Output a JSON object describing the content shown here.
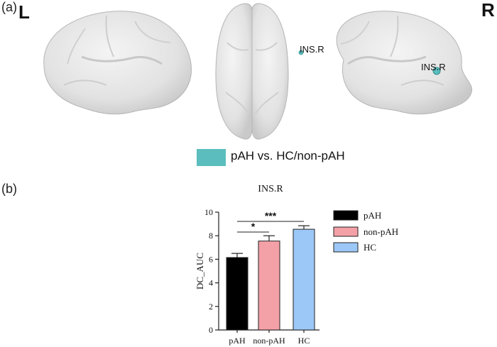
{
  "panel_a": {
    "label": "(a)",
    "left_hemisphere_label": "L",
    "right_hemisphere_label": "R",
    "roi_label_top": "INS.R",
    "roi_label_right": "INS.R",
    "roi_color": "#5bbdbd",
    "legend_text": "pAH vs. HC/non-pAH"
  },
  "panel_b": {
    "label": "(b)"
  },
  "chart_data": {
    "type": "bar",
    "title": "INS.R",
    "xlabel": "",
    "ylabel": "DC_AUC",
    "categories": [
      "pAH",
      "non-pAH",
      "HC"
    ],
    "values": [
      6.15,
      7.55,
      8.55
    ],
    "errors": [
      0.35,
      0.45,
      0.3
    ],
    "colors": [
      "#000000",
      "#f4a0a7",
      "#9cc8f7"
    ],
    "ylim": [
      0,
      10
    ],
    "yticks": [
      0,
      2,
      4,
      6,
      8,
      10
    ],
    "legend": [
      "pAH",
      "non-pAH",
      "HC"
    ],
    "legend_position": "right",
    "significance": [
      {
        "from": "pAH",
        "to": "non-pAH",
        "label": "*"
      },
      {
        "from": "pAH",
        "to": "HC",
        "label": "***"
      }
    ]
  }
}
